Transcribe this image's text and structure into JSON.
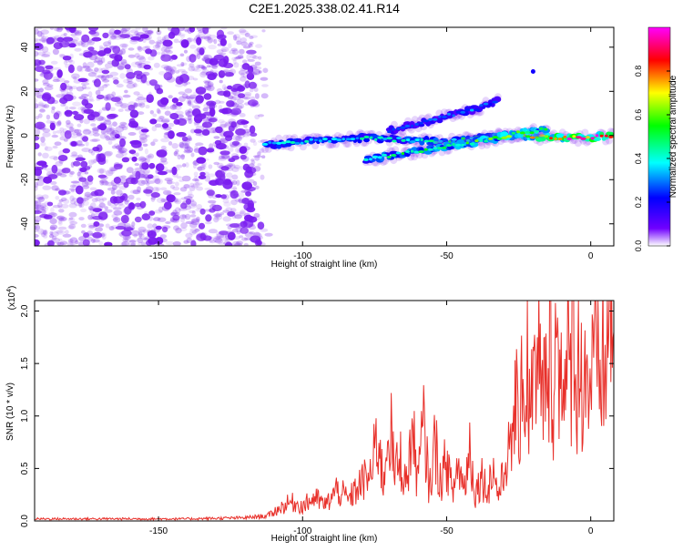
{
  "page_title": "C2E1.2025.338.02.41.R14",
  "chart_data": [
    {
      "type": "heatmap",
      "title": "C2E1.2025.338.02.41.R14",
      "xlabel": "Height of straight line (km)",
      "ylabel": "Frequency (Hz)",
      "xlim": [
        -193,
        8
      ],
      "ylim": [
        -50,
        49
      ],
      "xticks": [
        -150,
        -100,
        -50,
        0
      ],
      "yticks": [
        -40,
        -20,
        0,
        20,
        40
      ],
      "colorbar": {
        "label": "Normalized spectral amplitude",
        "range": [
          0,
          1
        ],
        "ticks": [
          0.0,
          0.2,
          0.4,
          0.6,
          0.8
        ],
        "tick_labels": [
          "0.0",
          "0.2",
          "0.4",
          "0.6",
          "0.8"
        ],
        "colormap": [
          "#ffffff",
          "#7000ff",
          "#0000ff",
          "#00ffff",
          "#00ff00",
          "#ffff00",
          "#ff0000",
          "#ff00ff"
        ]
      },
      "noise_region": {
        "x": [
          -193,
          -113
        ],
        "y": [
          -50,
          49
        ],
        "color": "#8a3cf0"
      },
      "features": [
        {
          "name": "main-trace",
          "x": [
            -113,
            -80,
            -50,
            -30,
            -10,
            0,
            8
          ],
          "y": [
            -4,
            -1,
            -3,
            0,
            -1,
            -1,
            0
          ],
          "amplitude": [
            0.4,
            0.4,
            0.45,
            0.55,
            0.85,
            0.9,
            0.85
          ]
        },
        {
          "name": "secondary-trace",
          "x": [
            -78,
            -60,
            -40,
            -25,
            -15
          ],
          "y": [
            -11,
            -7,
            -3,
            1,
            3
          ],
          "amplitude": [
            0.45,
            0.5,
            0.55,
            0.6,
            0.55
          ]
        },
        {
          "name": "upper-trace",
          "x": [
            -70,
            -55,
            -40,
            -32
          ],
          "y": [
            2,
            7,
            12,
            16
          ],
          "amplitude": [
            0.25,
            0.3,
            0.3,
            0.25
          ]
        },
        {
          "name": "isolated-point",
          "x": [
            -20
          ],
          "y": [
            29
          ],
          "amplitude": [
            0.2
          ]
        }
      ]
    },
    {
      "type": "line",
      "xlabel": "Height of straight line (km)",
      "ylabel": "SNR (10 * v/v)",
      "y_multiplier": "(x10",
      "y_multiplier_exp": "4",
      "y_multiplier_close": ")",
      "xlim": [
        -193,
        8
      ],
      "ylim": [
        0,
        2.1
      ],
      "xticks": [
        -150,
        -100,
        -50,
        0
      ],
      "yticks": [
        0.0,
        0.5,
        1.0,
        1.5,
        2.0
      ],
      "ytick_labels": [
        "0.0",
        "0.5",
        "1.0",
        "1.5",
        "2.0"
      ],
      "color": "#e8302a",
      "series": [
        {
          "x": [
            -193,
            -180,
            -160,
            -140,
            -120,
            -112,
            -108,
            -104,
            -100,
            -96,
            -92,
            -88,
            -84,
            -80,
            -76,
            -74,
            -72,
            -70,
            -68,
            -66,
            -64,
            -62,
            -60,
            -58,
            -56,
            -54,
            -52,
            -50,
            -48,
            -46,
            -44,
            -42,
            -40,
            -38,
            -36,
            -34,
            -32,
            -30,
            -29,
            -28,
            -27,
            -26,
            -25,
            -24,
            -23,
            -22,
            -21,
            -20,
            -19,
            -18,
            -17,
            -16,
            -15,
            -14,
            -13,
            -12,
            -11,
            -10,
            -9,
            -8,
            -7,
            -6,
            -5,
            -4,
            -3,
            -2,
            -1,
            0,
            1,
            2,
            3,
            4,
            5,
            6,
            7,
            8
          ],
          "y": [
            0.02,
            0.02,
            0.02,
            0.02,
            0.03,
            0.05,
            0.12,
            0.18,
            0.14,
            0.22,
            0.15,
            0.3,
            0.2,
            0.35,
            0.45,
            0.85,
            0.35,
            1.0,
            0.45,
            0.6,
            0.35,
            0.85,
            0.4,
            0.9,
            0.3,
            0.75,
            0.35,
            0.6,
            0.25,
            0.55,
            0.3,
            0.7,
            0.25,
            0.45,
            0.28,
            0.5,
            0.25,
            0.45,
            0.75,
            0.55,
            0.9,
            1.25,
            0.6,
            1.75,
            0.9,
            1.55,
            0.8,
            1.85,
            0.9,
            1.7,
            1.0,
            1.6,
            0.85,
            1.95,
            1.2,
            1.75,
            1.3,
            1.9,
            1.15,
            1.45,
            1.35,
            2.02,
            1.25,
            1.55,
            1.3,
            1.6,
            1.2,
            1.45,
            1.35,
            1.55,
            1.25,
            1.6,
            1.4,
            1.75,
            2.05,
            1.8
          ]
        }
      ]
    }
  ]
}
